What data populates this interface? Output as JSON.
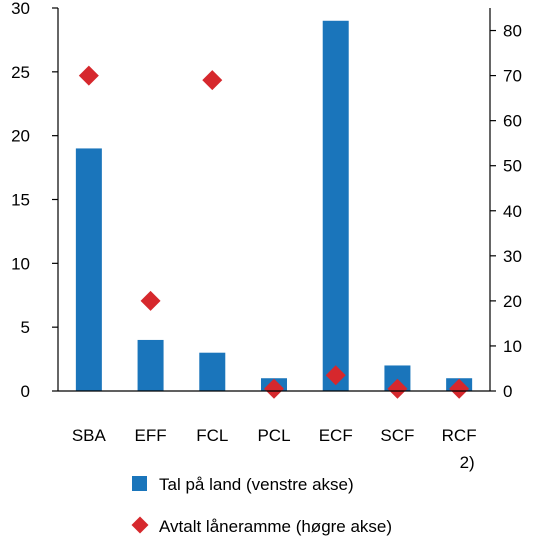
{
  "chart_data": {
    "type": "bar",
    "categories": [
      {
        "line1": "SBA",
        "line2": ""
      },
      {
        "line1": "EFF",
        "line2": ""
      },
      {
        "line1": "FCL",
        "line2": ""
      },
      {
        "line1": "PCL",
        "line2": ""
      },
      {
        "line1": "ECF",
        "line2": ""
      },
      {
        "line1": "SCF",
        "line2": ""
      },
      {
        "line1": "RCF",
        "line2": "2)"
      }
    ],
    "series": [
      {
        "name": "Tal på land (venstre akse)",
        "type": "bar",
        "axis": "left",
        "color": "#1a75bb",
        "values": [
          19,
          4,
          3,
          1,
          29,
          2,
          1
        ]
      },
      {
        "name": "Avtalt låneramme (høgre akse)",
        "type": "scatter",
        "marker": "diamond",
        "axis": "right",
        "color": "#d6282d",
        "values": [
          70,
          20,
          69,
          0.5,
          3.5,
          0.5,
          0.5
        ]
      }
    ],
    "y_left": {
      "min": 0,
      "max": 30,
      "ticks": [
        "0",
        "5",
        "10",
        "15",
        "20",
        "25",
        "30"
      ]
    },
    "y_right": {
      "min": 0,
      "max": 85,
      "ticks": [
        "0",
        "10",
        "20",
        "30",
        "40",
        "50",
        "60",
        "70",
        "80"
      ]
    },
    "grid": false,
    "legend_position": "bottom"
  }
}
